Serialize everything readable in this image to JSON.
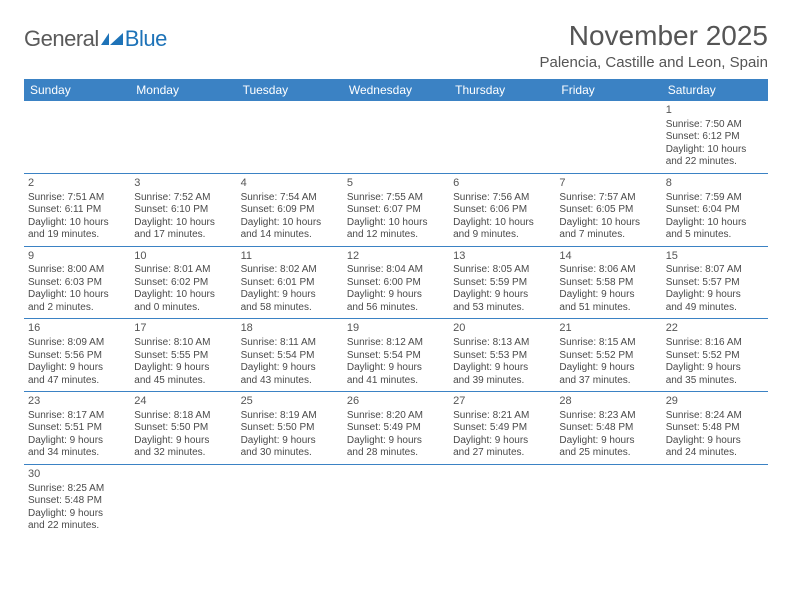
{
  "logo": {
    "part1": "General",
    "part2": "Blue",
    "shape_color": "#1e73b8"
  },
  "title": "November 2025",
  "location": "Palencia, Castille and Leon, Spain",
  "colors": {
    "header_bg": "#3b82c4",
    "header_text": "#ffffff",
    "border": "#3b82c4",
    "text": "#4a4a4a",
    "title_text": "#555555"
  },
  "weekdays": [
    "Sunday",
    "Monday",
    "Tuesday",
    "Wednesday",
    "Thursday",
    "Friday",
    "Saturday"
  ],
  "weeks": [
    [
      null,
      null,
      null,
      null,
      null,
      null,
      {
        "d": "1",
        "sr": "Sunrise: 7:50 AM",
        "ss": "Sunset: 6:12 PM",
        "dl1": "Daylight: 10 hours",
        "dl2": "and 22 minutes."
      }
    ],
    [
      {
        "d": "2",
        "sr": "Sunrise: 7:51 AM",
        "ss": "Sunset: 6:11 PM",
        "dl1": "Daylight: 10 hours",
        "dl2": "and 19 minutes."
      },
      {
        "d": "3",
        "sr": "Sunrise: 7:52 AM",
        "ss": "Sunset: 6:10 PM",
        "dl1": "Daylight: 10 hours",
        "dl2": "and 17 minutes."
      },
      {
        "d": "4",
        "sr": "Sunrise: 7:54 AM",
        "ss": "Sunset: 6:09 PM",
        "dl1": "Daylight: 10 hours",
        "dl2": "and 14 minutes."
      },
      {
        "d": "5",
        "sr": "Sunrise: 7:55 AM",
        "ss": "Sunset: 6:07 PM",
        "dl1": "Daylight: 10 hours",
        "dl2": "and 12 minutes."
      },
      {
        "d": "6",
        "sr": "Sunrise: 7:56 AM",
        "ss": "Sunset: 6:06 PM",
        "dl1": "Daylight: 10 hours",
        "dl2": "and 9 minutes."
      },
      {
        "d": "7",
        "sr": "Sunrise: 7:57 AM",
        "ss": "Sunset: 6:05 PM",
        "dl1": "Daylight: 10 hours",
        "dl2": "and 7 minutes."
      },
      {
        "d": "8",
        "sr": "Sunrise: 7:59 AM",
        "ss": "Sunset: 6:04 PM",
        "dl1": "Daylight: 10 hours",
        "dl2": "and 5 minutes."
      }
    ],
    [
      {
        "d": "9",
        "sr": "Sunrise: 8:00 AM",
        "ss": "Sunset: 6:03 PM",
        "dl1": "Daylight: 10 hours",
        "dl2": "and 2 minutes."
      },
      {
        "d": "10",
        "sr": "Sunrise: 8:01 AM",
        "ss": "Sunset: 6:02 PM",
        "dl1": "Daylight: 10 hours",
        "dl2": "and 0 minutes."
      },
      {
        "d": "11",
        "sr": "Sunrise: 8:02 AM",
        "ss": "Sunset: 6:01 PM",
        "dl1": "Daylight: 9 hours",
        "dl2": "and 58 minutes."
      },
      {
        "d": "12",
        "sr": "Sunrise: 8:04 AM",
        "ss": "Sunset: 6:00 PM",
        "dl1": "Daylight: 9 hours",
        "dl2": "and 56 minutes."
      },
      {
        "d": "13",
        "sr": "Sunrise: 8:05 AM",
        "ss": "Sunset: 5:59 PM",
        "dl1": "Daylight: 9 hours",
        "dl2": "and 53 minutes."
      },
      {
        "d": "14",
        "sr": "Sunrise: 8:06 AM",
        "ss": "Sunset: 5:58 PM",
        "dl1": "Daylight: 9 hours",
        "dl2": "and 51 minutes."
      },
      {
        "d": "15",
        "sr": "Sunrise: 8:07 AM",
        "ss": "Sunset: 5:57 PM",
        "dl1": "Daylight: 9 hours",
        "dl2": "and 49 minutes."
      }
    ],
    [
      {
        "d": "16",
        "sr": "Sunrise: 8:09 AM",
        "ss": "Sunset: 5:56 PM",
        "dl1": "Daylight: 9 hours",
        "dl2": "and 47 minutes."
      },
      {
        "d": "17",
        "sr": "Sunrise: 8:10 AM",
        "ss": "Sunset: 5:55 PM",
        "dl1": "Daylight: 9 hours",
        "dl2": "and 45 minutes."
      },
      {
        "d": "18",
        "sr": "Sunrise: 8:11 AM",
        "ss": "Sunset: 5:54 PM",
        "dl1": "Daylight: 9 hours",
        "dl2": "and 43 minutes."
      },
      {
        "d": "19",
        "sr": "Sunrise: 8:12 AM",
        "ss": "Sunset: 5:54 PM",
        "dl1": "Daylight: 9 hours",
        "dl2": "and 41 minutes."
      },
      {
        "d": "20",
        "sr": "Sunrise: 8:13 AM",
        "ss": "Sunset: 5:53 PM",
        "dl1": "Daylight: 9 hours",
        "dl2": "and 39 minutes."
      },
      {
        "d": "21",
        "sr": "Sunrise: 8:15 AM",
        "ss": "Sunset: 5:52 PM",
        "dl1": "Daylight: 9 hours",
        "dl2": "and 37 minutes."
      },
      {
        "d": "22",
        "sr": "Sunrise: 8:16 AM",
        "ss": "Sunset: 5:52 PM",
        "dl1": "Daylight: 9 hours",
        "dl2": "and 35 minutes."
      }
    ],
    [
      {
        "d": "23",
        "sr": "Sunrise: 8:17 AM",
        "ss": "Sunset: 5:51 PM",
        "dl1": "Daylight: 9 hours",
        "dl2": "and 34 minutes."
      },
      {
        "d": "24",
        "sr": "Sunrise: 8:18 AM",
        "ss": "Sunset: 5:50 PM",
        "dl1": "Daylight: 9 hours",
        "dl2": "and 32 minutes."
      },
      {
        "d": "25",
        "sr": "Sunrise: 8:19 AM",
        "ss": "Sunset: 5:50 PM",
        "dl1": "Daylight: 9 hours",
        "dl2": "and 30 minutes."
      },
      {
        "d": "26",
        "sr": "Sunrise: 8:20 AM",
        "ss": "Sunset: 5:49 PM",
        "dl1": "Daylight: 9 hours",
        "dl2": "and 28 minutes."
      },
      {
        "d": "27",
        "sr": "Sunrise: 8:21 AM",
        "ss": "Sunset: 5:49 PM",
        "dl1": "Daylight: 9 hours",
        "dl2": "and 27 minutes."
      },
      {
        "d": "28",
        "sr": "Sunrise: 8:23 AM",
        "ss": "Sunset: 5:48 PM",
        "dl1": "Daylight: 9 hours",
        "dl2": "and 25 minutes."
      },
      {
        "d": "29",
        "sr": "Sunrise: 8:24 AM",
        "ss": "Sunset: 5:48 PM",
        "dl1": "Daylight: 9 hours",
        "dl2": "and 24 minutes."
      }
    ],
    [
      {
        "d": "30",
        "sr": "Sunrise: 8:25 AM",
        "ss": "Sunset: 5:48 PM",
        "dl1": "Daylight: 9 hours",
        "dl2": "and 22 minutes."
      },
      null,
      null,
      null,
      null,
      null,
      null
    ]
  ]
}
